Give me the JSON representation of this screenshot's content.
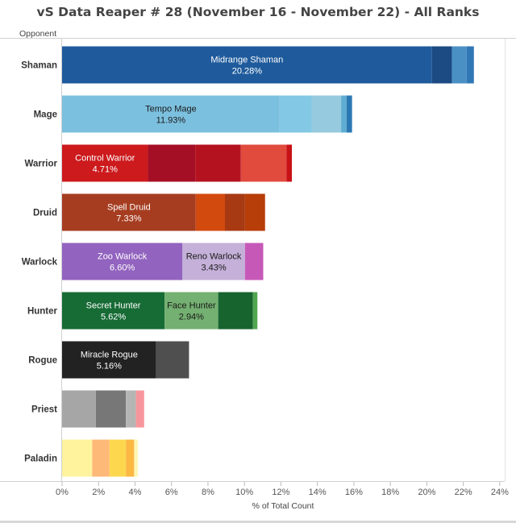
{
  "chart_data": {
    "type": "bar",
    "orientation": "horizontal",
    "stacked": true,
    "title": "vS Data Reaper # 28 (November 16 - November 22) - All Ranks",
    "ylabel": "Opponent",
    "xlabel": "% of Total Count",
    "xlim": [
      0,
      24
    ],
    "xticks": [
      "0%",
      "2%",
      "4%",
      "6%",
      "8%",
      "10%",
      "12%",
      "14%",
      "16%",
      "18%",
      "20%",
      "22%",
      "24%"
    ],
    "xtick_values": [
      0,
      2,
      4,
      6,
      8,
      10,
      12,
      14,
      16,
      18,
      20,
      22,
      24
    ],
    "categories": [
      {
        "name": "Shaman",
        "segments": [
          {
            "value": 20.28,
            "color": "#1f5b9c",
            "label": "Midrange Shaman",
            "pct": "20.28%"
          },
          {
            "value": 1.1,
            "color": "#1c4a82"
          },
          {
            "value": 0.8,
            "color": "#4a90c5"
          },
          {
            "value": 0.4,
            "color": "#2f77b5"
          }
        ]
      },
      {
        "name": "Mage",
        "segments": [
          {
            "value": 11.93,
            "color": "#7cc0df",
            "label": "Tempo Mage",
            "pct": "11.93%"
          },
          {
            "value": 1.77,
            "color": "#83c8e4"
          },
          {
            "value": 1.6,
            "color": "#96cbdf"
          },
          {
            "value": 0.3,
            "color": "#5eaed3"
          },
          {
            "value": 0.3,
            "color": "#2b78b4"
          }
        ]
      },
      {
        "name": "Warrior",
        "segments": [
          {
            "value": 4.71,
            "color": "#cc1a1d",
            "label": "Control Warrior",
            "pct": "4.71%"
          },
          {
            "value": 2.59,
            "color": "#a50f25"
          },
          {
            "value": 2.5,
            "color": "#b5121f"
          },
          {
            "value": 2.5,
            "color": "#e04b3e"
          },
          {
            "value": 0.3,
            "color": "#c81216"
          }
        ]
      },
      {
        "name": "Druid",
        "segments": [
          {
            "value": 7.33,
            "color": "#a63d21",
            "label": "Spell Druid",
            "pct": "7.33%"
          },
          {
            "value": 1.6,
            "color": "#d34a0f"
          },
          {
            "value": 1.1,
            "color": "#a83a13"
          },
          {
            "value": 1.1,
            "color": "#b73d09"
          }
        ]
      },
      {
        "name": "Warlock",
        "segments": [
          {
            "value": 6.6,
            "color": "#9263bf",
            "label": "Zoo Warlock",
            "pct": "6.60%"
          },
          {
            "value": 3.43,
            "color": "#c4b0d8",
            "label": "Reno Warlock",
            "pct": "3.43%"
          },
          {
            "value": 1.0,
            "color": "#c659b8"
          }
        ]
      },
      {
        "name": "Hunter",
        "segments": [
          {
            "value": 5.62,
            "color": "#176b35",
            "label": "Secret Hunter",
            "pct": "5.62%"
          },
          {
            "value": 2.94,
            "color": "#74b071",
            "label": "Face Hunter",
            "pct": "2.94%"
          },
          {
            "value": 1.9,
            "color": "#17642f"
          },
          {
            "value": 0.25,
            "color": "#52a652"
          }
        ]
      },
      {
        "name": "Rogue",
        "segments": [
          {
            "value": 5.16,
            "color": "#222222",
            "label": "Miracle Rogue",
            "pct": "5.16%"
          },
          {
            "value": 1.8,
            "color": "#4f4f4f"
          }
        ]
      },
      {
        "name": "Priest",
        "segments": [
          {
            "value": 1.85,
            "color": "#a6a6a6"
          },
          {
            "value": 1.65,
            "color": "#777777"
          },
          {
            "value": 0.55,
            "color": "#b5b5b5"
          },
          {
            "value": 0.45,
            "color": "#f7969c"
          }
        ]
      },
      {
        "name": "Paladin",
        "segments": [
          {
            "value": 1.65,
            "color": "#fff39e"
          },
          {
            "value": 0.95,
            "color": "#fdb978"
          },
          {
            "value": 0.9,
            "color": "#fdd84f"
          },
          {
            "value": 0.45,
            "color": "#fbb843"
          },
          {
            "value": 0.2,
            "color": "#fff5b0"
          }
        ]
      }
    ]
  }
}
